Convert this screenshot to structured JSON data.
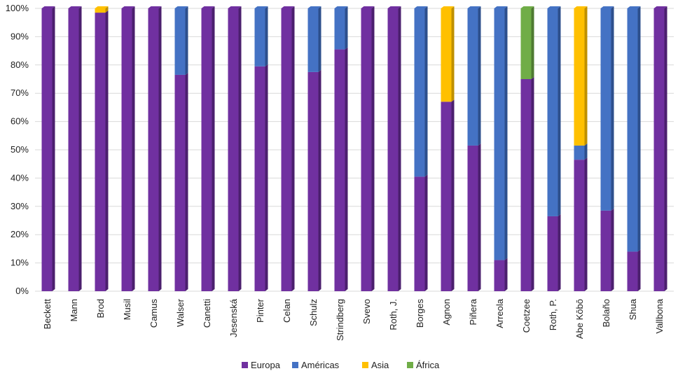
{
  "chart_data": {
    "type": "bar",
    "stacked": true,
    "percent_stacked": true,
    "grid": true,
    "legend_position": "bottom",
    "ylim": [
      0,
      100
    ],
    "yticks": [
      "0%",
      "10%",
      "20%",
      "30%",
      "40%",
      "50%",
      "60%",
      "70%",
      "80%",
      "90%",
      "100%"
    ],
    "categories": [
      "Beckett",
      "Mann",
      "Brod",
      "Musil",
      "Camus",
      "Walser",
      "Canetti",
      "Jesenská",
      "Pinter",
      "Celan",
      "Schulz",
      "Strindberg",
      "Svevo",
      "Roth, J.",
      "Borges",
      "Agnon",
      "Piñera",
      "Arreola",
      "Coetzee",
      "Roth, P.",
      "Abe Kōbō",
      "Bolaño",
      "Shua",
      "Vallbona"
    ],
    "series": [
      {
        "name": "Europa",
        "color": "#7030a0",
        "side": "#4b1f6e",
        "values": [
          100,
          100,
          98.5,
          100,
          100,
          76.5,
          100,
          100,
          79.5,
          100,
          77.5,
          85.5,
          100,
          100,
          40.5,
          67,
          51.5,
          11,
          75,
          26.5,
          46.5,
          28.5,
          14,
          100
        ]
      },
      {
        "name": "Américas",
        "color": "#4472c4",
        "side": "#2d4f8c",
        "values": [
          0,
          0,
          0,
          0,
          0,
          23.5,
          0,
          0,
          20.5,
          0,
          22.5,
          14.5,
          0,
          0,
          59.5,
          0,
          48.5,
          89,
          0,
          73.5,
          5,
          71.5,
          86,
          0
        ]
      },
      {
        "name": "Asia",
        "color": "#ffc000",
        "side": "#bf9000",
        "values": [
          0,
          0,
          1.5,
          0,
          0,
          0,
          0,
          0,
          0,
          0,
          0,
          0,
          0,
          0,
          0,
          33,
          0,
          0,
          0,
          0,
          48.5,
          0,
          0,
          0
        ]
      },
      {
        "name": "África",
        "color": "#70ad47",
        "side": "#4e7a31",
        "values": [
          0,
          0,
          0,
          0,
          0,
          0,
          0,
          0,
          0,
          0,
          0,
          0,
          0,
          0,
          0,
          0,
          0,
          0,
          25,
          0,
          0,
          0,
          0,
          0
        ]
      }
    ]
  }
}
